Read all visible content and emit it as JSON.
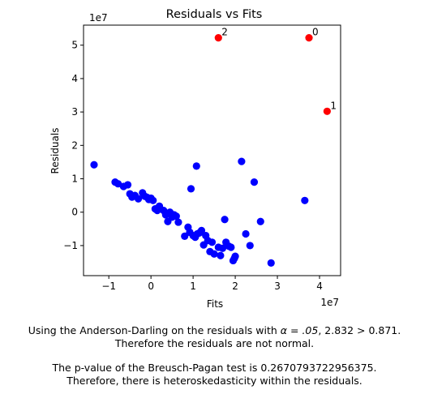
{
  "chart_data": {
    "type": "scatter",
    "title": "Residuals vs Fits",
    "xlabel": "Fits",
    "ylabel": "Residuals",
    "x_offset_label": "1e7",
    "y_offset_label": "1e7",
    "xlim": [
      -1.6,
      4.5
    ],
    "ylim": [
      -1.9,
      5.6
    ],
    "x_ticks": [
      -1,
      0,
      1,
      2,
      3,
      4
    ],
    "x_tick_labels": [
      "−1",
      "0",
      "1",
      "2",
      "3",
      "4"
    ],
    "y_ticks": [
      -1,
      0,
      1,
      2,
      3,
      4,
      5
    ],
    "y_tick_labels": [
      "−1",
      "0",
      "1",
      "2",
      "3",
      "4",
      "5"
    ],
    "grid": false,
    "series": [
      {
        "color": "#0000ff",
        "points": [
          [
            -1.35,
            1.42
          ],
          [
            -0.85,
            0.9
          ],
          [
            -0.78,
            0.85
          ],
          [
            -0.65,
            0.77
          ],
          [
            -0.55,
            0.82
          ],
          [
            -0.5,
            0.55
          ],
          [
            -0.45,
            0.45
          ],
          [
            -0.38,
            0.5
          ],
          [
            -0.3,
            0.4
          ],
          [
            -0.2,
            0.58
          ],
          [
            -0.15,
            0.48
          ],
          [
            -0.1,
            0.45
          ],
          [
            -0.05,
            0.38
          ],
          [
            0.0,
            0.42
          ],
          [
            0.05,
            0.35
          ],
          [
            0.1,
            0.1
          ],
          [
            0.15,
            0.05
          ],
          [
            0.2,
            0.18
          ],
          [
            0.3,
            0.05
          ],
          [
            0.35,
            -0.05
          ],
          [
            0.4,
            -0.28
          ],
          [
            0.45,
            0.0
          ],
          [
            0.5,
            -0.15
          ],
          [
            0.55,
            -0.08
          ],
          [
            0.6,
            -0.12
          ],
          [
            0.65,
            -0.3
          ],
          [
            0.8,
            -0.72
          ],
          [
            0.88,
            -0.45
          ],
          [
            0.92,
            -0.6
          ],
          [
            0.95,
            0.7
          ],
          [
            1.0,
            -0.7
          ],
          [
            1.05,
            -0.75
          ],
          [
            1.08,
            1.38
          ],
          [
            1.1,
            -0.65
          ],
          [
            1.15,
            -0.62
          ],
          [
            1.2,
            -0.55
          ],
          [
            1.25,
            -0.98
          ],
          [
            1.3,
            -0.7
          ],
          [
            1.35,
            -0.85
          ],
          [
            1.4,
            -1.18
          ],
          [
            1.45,
            -0.9
          ],
          [
            1.5,
            -1.25
          ],
          [
            1.6,
            -1.05
          ],
          [
            1.65,
            -1.3
          ],
          [
            1.7,
            -1.08
          ],
          [
            1.78,
            -0.9
          ],
          [
            1.85,
            -1.02
          ],
          [
            1.9,
            -1.05
          ],
          [
            1.95,
            -1.45
          ],
          [
            2.0,
            -1.32
          ],
          [
            1.98,
            -1.38
          ],
          [
            2.15,
            1.52
          ],
          [
            2.25,
            -0.65
          ],
          [
            2.35,
            -1.0
          ],
          [
            2.45,
            0.9
          ],
          [
            2.6,
            -0.28
          ],
          [
            2.85,
            -1.52
          ],
          [
            3.65,
            0.35
          ],
          [
            1.75,
            -0.22
          ],
          [
            0.35,
            -0.08
          ]
        ]
      },
      {
        "color": "#ff0000",
        "points": [
          [
            3.75,
            5.22,
            "0"
          ],
          [
            4.18,
            3.02,
            "1"
          ],
          [
            1.6,
            5.22,
            "2"
          ]
        ]
      }
    ]
  },
  "captions": {
    "line1_a": "Using the Anderson-Darling on the residuals with ",
    "line1_alpha": "α = .05",
    "line1_b": ", 2.832 > 0.871.",
    "line2": "Therefore the residuals are not normal.",
    "line3": "The p-value of the Breusch-Pagan test is 0.2670793722956375.",
    "line4": "Therefore, there is heteroskedasticity within the residuals."
  }
}
